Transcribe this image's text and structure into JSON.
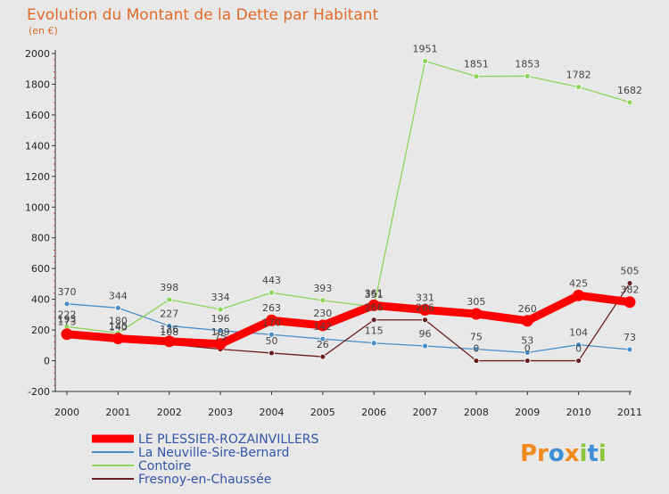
{
  "chart_data": {
    "type": "line",
    "title": "Evolution du Montant de la Dette par Habitant",
    "subtitle": "(en €)",
    "categories": [
      "2000",
      "2001",
      "2002",
      "2003",
      "2004",
      "2005",
      "2006",
      "2007",
      "2008",
      "2009",
      "2010",
      "2011"
    ],
    "ylim": [
      -200,
      2000
    ],
    "yticks": [
      -200,
      0,
      200,
      400,
      600,
      800,
      1000,
      1200,
      1400,
      1600,
      1800,
      2000
    ],
    "grid": false,
    "legend_position": "bottom-left",
    "series": [
      {
        "name": "LE PLESSIER-ROZAINVILLERS",
        "color": "#ff0000",
        "values": [
          173,
          145,
          126,
          109,
          263,
          230,
          361,
          331,
          305,
          260,
          425,
          382
        ]
      },
      {
        "name": "La Neuville-Sire-Bernard",
        "color": "#4a8ec8",
        "values": [
          370,
          344,
          227,
          196,
          170,
          142,
          115,
          96,
          75,
          53,
          104,
          73
        ]
      },
      {
        "name": "Contoire",
        "color": "#8ed45a",
        "values": [
          222,
          180,
          398,
          334,
          443,
          393,
          351,
          1951,
          1851,
          1853,
          1782,
          1682
        ]
      },
      {
        "name": "Fresnoy-en-Chaussée",
        "color": "#6a1f1f",
        "values": [
          193,
          140,
          108,
          75,
          50,
          26,
          266,
          266,
          0,
          0,
          0,
          505
        ]
      }
    ]
  },
  "logo": {
    "text": "Proxiti"
  }
}
